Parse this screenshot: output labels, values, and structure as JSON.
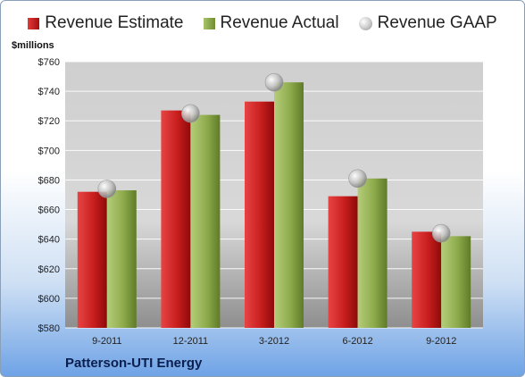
{
  "chart_data": {
    "type": "bar",
    "title": "",
    "ylabel": "$millions",
    "xlabel": "",
    "ylim": [
      580,
      760
    ],
    "ytick_step": 20,
    "y_tick_prefix": "$",
    "grid": true,
    "legend_position": "top",
    "categories": [
      "9-2011",
      "12-2011",
      "3-2012",
      "6-2012",
      "9-2012"
    ],
    "series": [
      {
        "name": "Revenue Estimate",
        "kind": "bar",
        "color": "#c62020",
        "values": [
          672,
          727,
          733,
          669,
          645
        ]
      },
      {
        "name": "Revenue Actual",
        "kind": "bar",
        "color": "#8aa84a",
        "values": [
          673,
          724,
          746,
          681,
          642
        ]
      },
      {
        "name": "Revenue GAAP",
        "kind": "marker",
        "color": "#c8c8c8",
        "values": [
          674,
          725,
          746,
          681,
          644
        ]
      }
    ]
  },
  "footer": {
    "company": "Patterson-UTI Energy"
  }
}
